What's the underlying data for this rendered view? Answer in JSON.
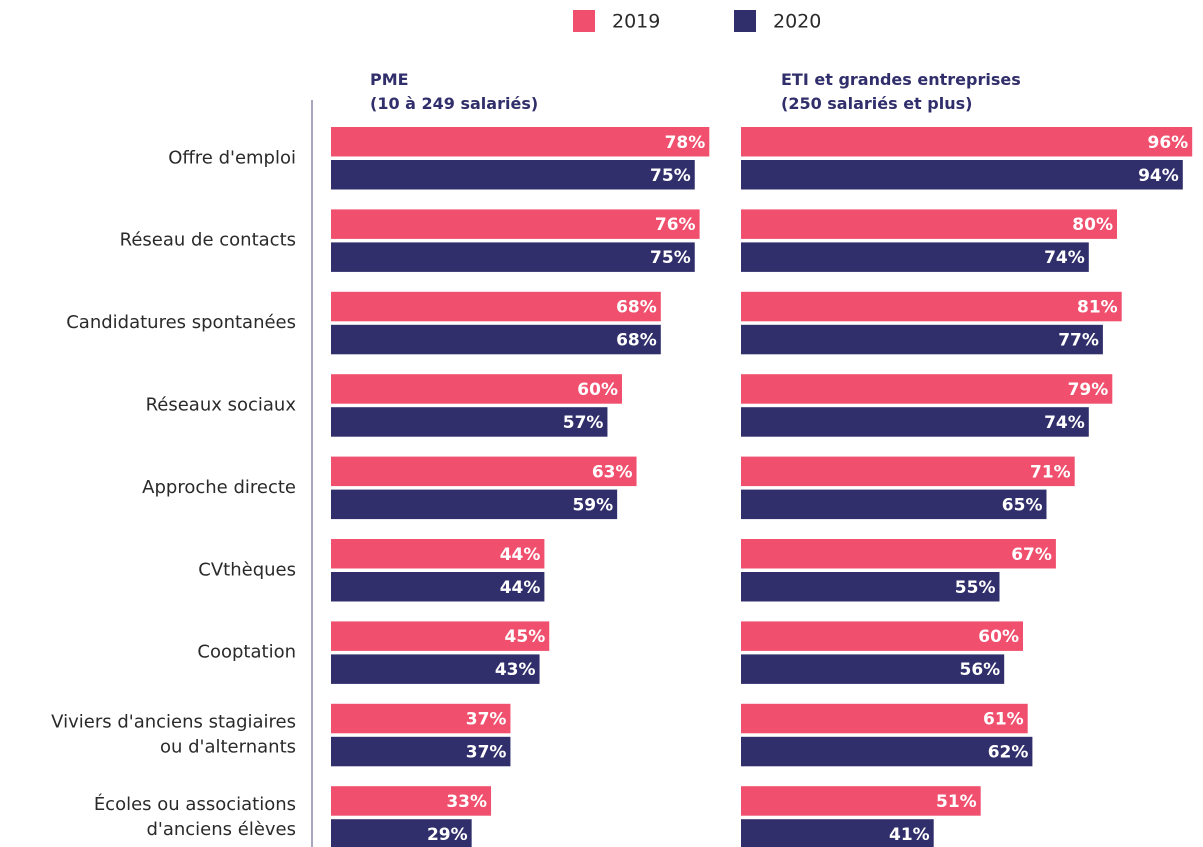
{
  "chart_data": [
    {
      "type": "bar",
      "title": "PME\n(10 à 249 salariés)",
      "categories": [
        "Offre  d'emploi",
        "Réseau de contacts",
        "Candidatures spontanées",
        "Réseaux sociaux",
        "Approche directe",
        "CVthèques",
        "Cooptation",
        "Viviers d'anciens stagiaires\nou d'alternants",
        "Écoles ou associations\nd'anciens élèves"
      ],
      "series": [
        {
          "name": "2019",
          "color": "#f0506e",
          "values": [
            78,
            76,
            68,
            60,
            63,
            44,
            45,
            37,
            33
          ],
          "value_labels": [
            "78%",
            "76%",
            "68%",
            "60%",
            "63%",
            "44%",
            "45%",
            "37%",
            "33%"
          ]
        },
        {
          "name": "2020",
          "color": "#312f6b",
          "values": [
            75,
            75,
            68,
            57,
            59,
            44,
            43,
            37,
            29
          ],
          "value_labels": [
            "75%",
            "75%",
            "68%",
            "57%",
            "59%",
            "44%",
            "43%",
            "37%",
            "29%"
          ]
        }
      ],
      "xlim": [
        0,
        100
      ]
    },
    {
      "type": "bar",
      "title": "ETI et grandes entreprises\n(250 salariés et plus)",
      "series": [
        {
          "color": "#f0506e",
          "values": [
            96,
            80,
            81,
            79,
            71,
            67,
            60,
            61,
            51
          ],
          "value_labels": [
            "96%",
            "80%",
            "81%",
            "79%",
            "71%",
            "67%",
            "60%",
            "61%",
            "51%"
          ]
        },
        {
          "color": "#312f6b",
          "values": [
            94,
            74,
            77,
            74,
            65,
            55,
            56,
            62,
            41
          ],
          "value_labels": [
            "94%",
            "74%",
            "77%",
            "74%",
            "65%",
            "55%",
            "56%",
            "62%",
            "41%"
          ]
        }
      ],
      "xlim": [
        0,
        100
      ]
    }
  ]
}
